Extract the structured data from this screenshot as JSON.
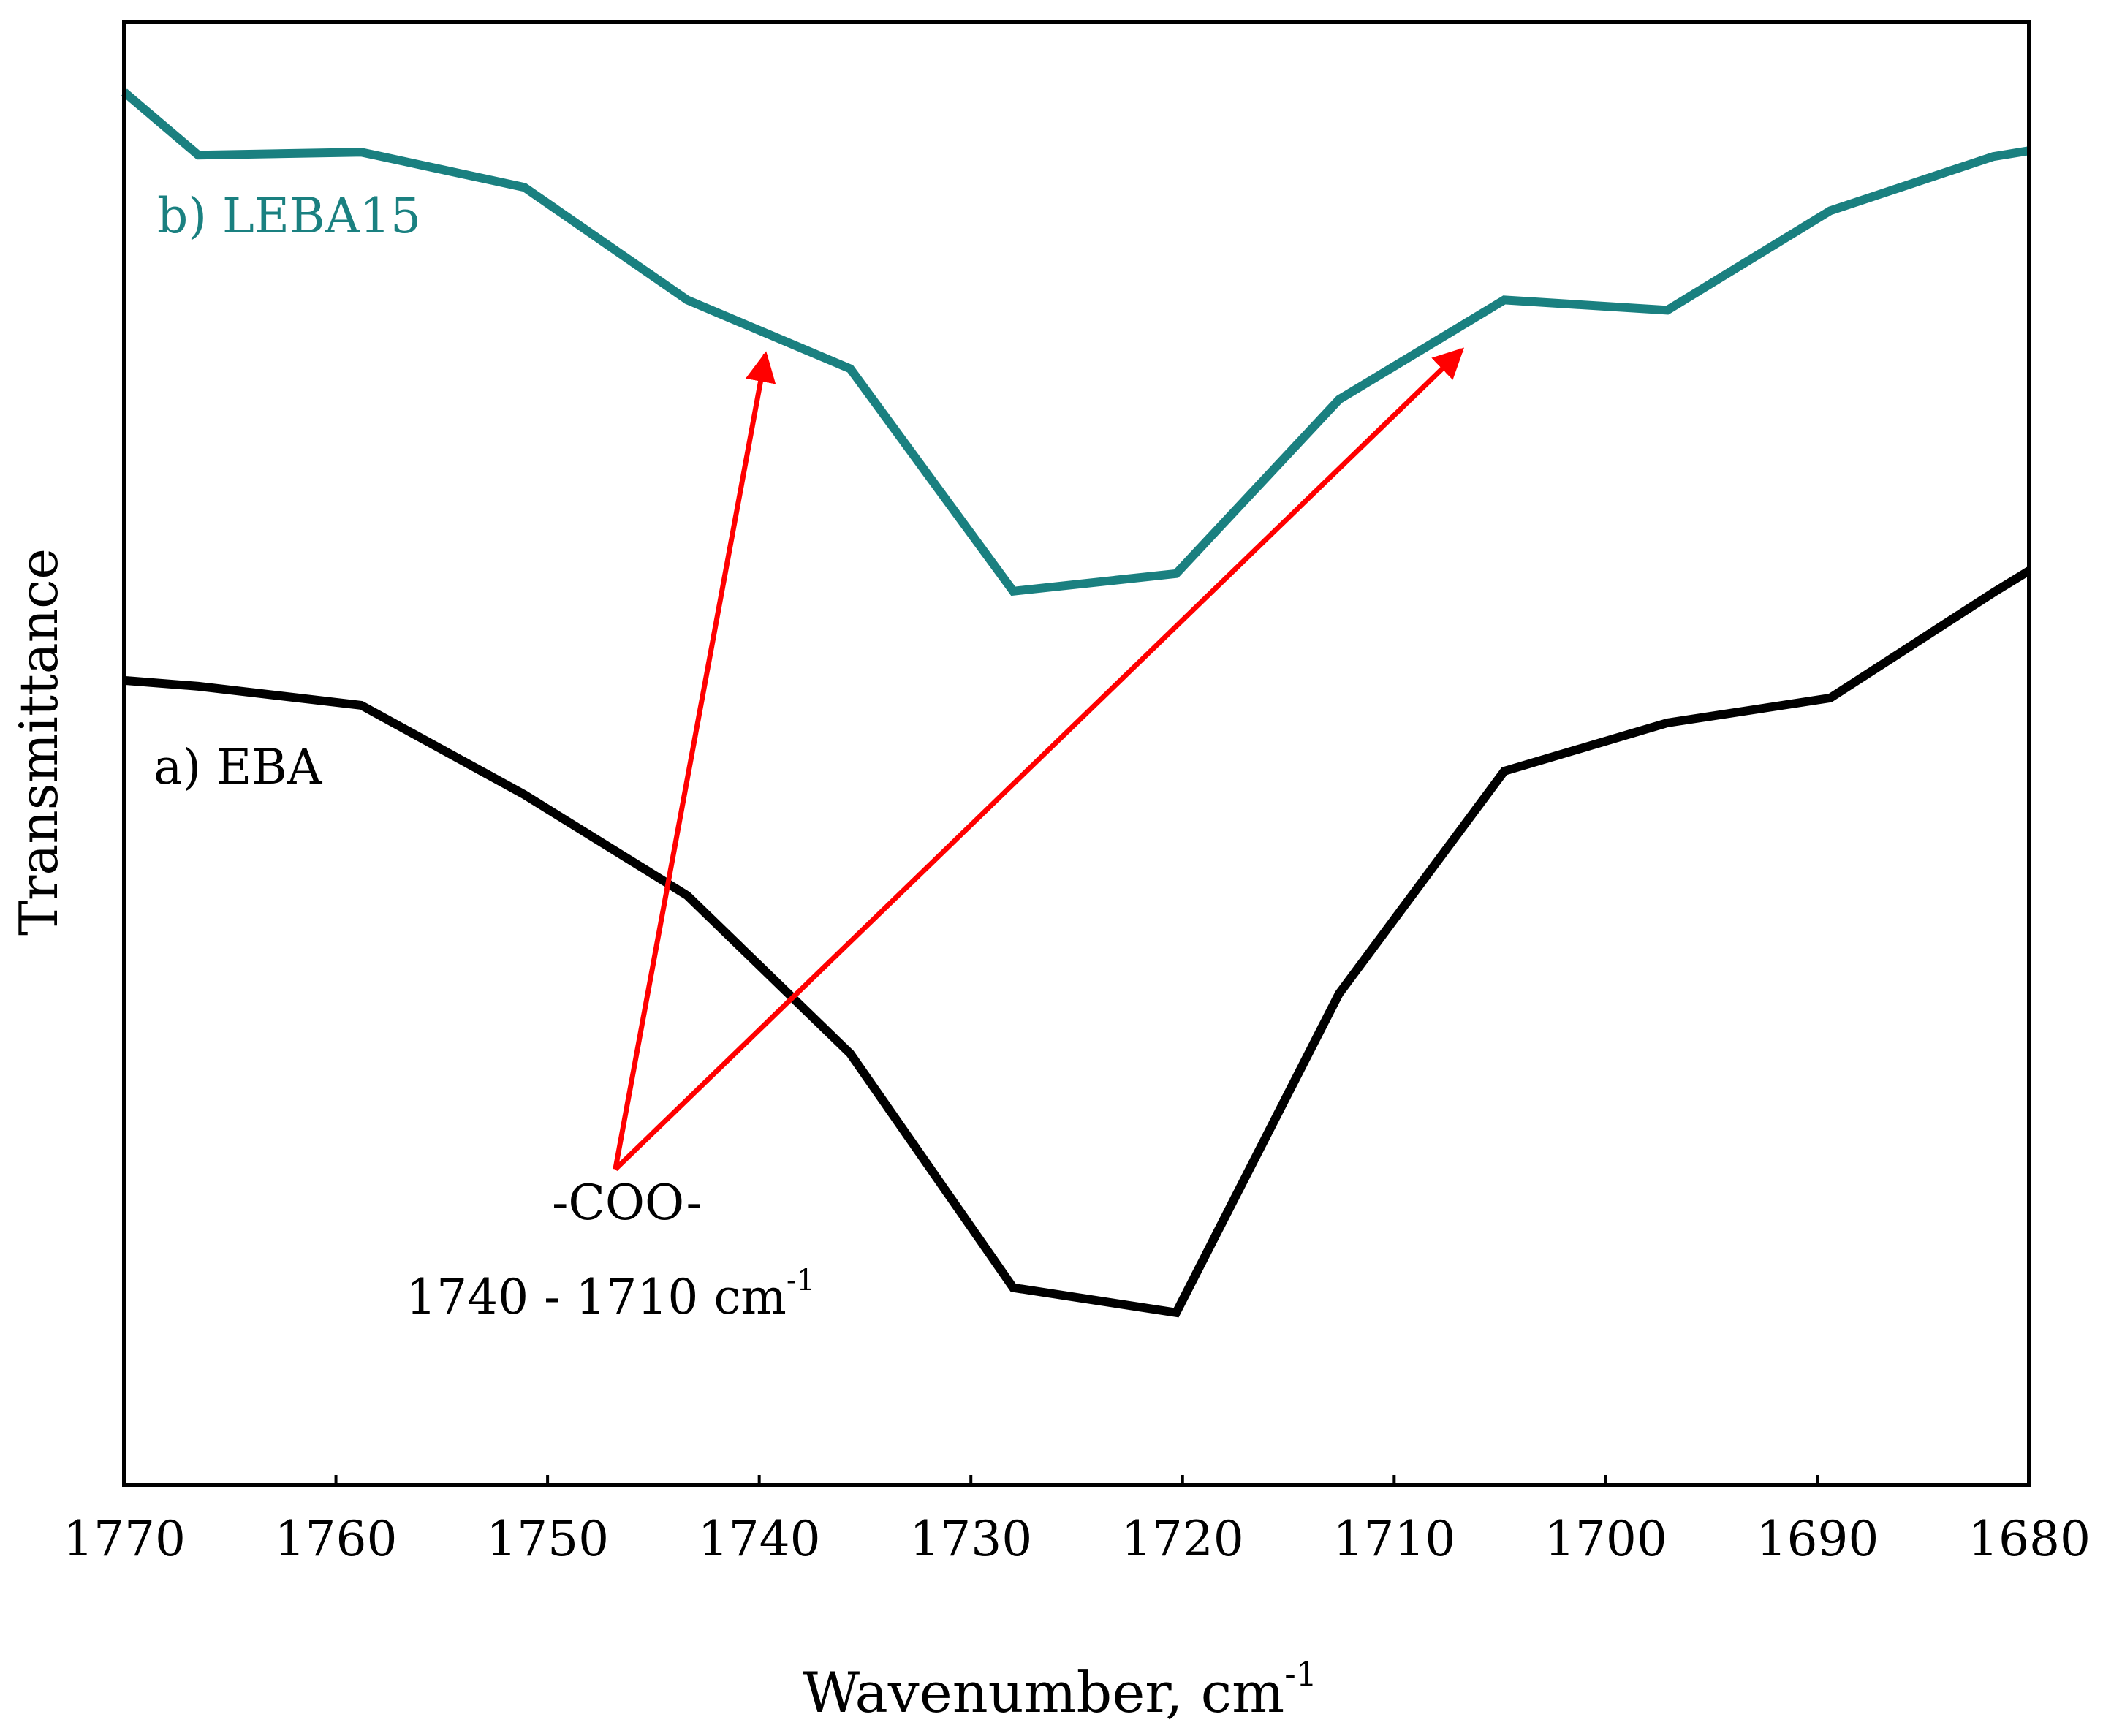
{
  "chart_data": {
    "type": "line",
    "title": "",
    "xlabel": "Wavenumber, cm",
    "xlabel_superscript": "-1",
    "ylabel": "Transmittance",
    "xlim": [
      1770,
      1680
    ],
    "ylim": [
      0,
      100
    ],
    "x_reversed": true,
    "xticks": [
      1770,
      1760,
      1750,
      1740,
      1730,
      1720,
      1710,
      1700,
      1690,
      1680
    ],
    "yticks_shown": false,
    "grid": false,
    "series": [
      {
        "name": "a) EBA",
        "color": "#000000",
        "x": [
          1770,
          1766.5,
          1758.8,
          1751.1,
          1743.4,
          1735.7,
          1728.0,
          1720.3,
          1712.6,
          1704.8,
          1697.1,
          1689.4,
          1681.7,
          1680
        ],
        "y": [
          55.0,
          54.6,
          53.3,
          47.2,
          40.3,
          29.5,
          13.5,
          11.8,
          33.6,
          48.8,
          52.1,
          53.8,
          61.0,
          62.5
        ]
      },
      {
        "name": "b) LEBA15",
        "color": "#1a8080",
        "x": [
          1770,
          1766.5,
          1758.8,
          1751.1,
          1743.4,
          1735.7,
          1728.0,
          1720.3,
          1712.6,
          1704.8,
          1697.1,
          1689.4,
          1681.7,
          1680
        ],
        "y": [
          95.2,
          90.9,
          91.1,
          88.7,
          81.0,
          76.3,
          61.1,
          62.3,
          74.2,
          81.0,
          80.3,
          87.1,
          90.8,
          91.2
        ]
      }
    ],
    "annotations": [
      {
        "text": "-COO-",
        "subtext": "1740 - 1710 cm",
        "subtext_superscript": "-1",
        "color": "#ff0000",
        "arrow_origin": [
          1746.8,
          21.6
        ],
        "arrow_targets": [
          [
            1739.7,
            77.3
          ],
          [
            1706.8,
            77.6
          ]
        ]
      }
    ]
  }
}
